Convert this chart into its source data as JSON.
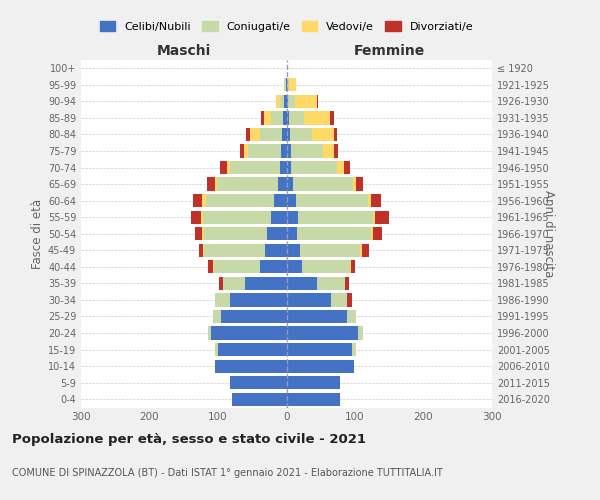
{
  "age_groups": [
    "0-4",
    "5-9",
    "10-14",
    "15-19",
    "20-24",
    "25-29",
    "30-34",
    "35-39",
    "40-44",
    "45-49",
    "50-54",
    "55-59",
    "60-64",
    "65-69",
    "70-74",
    "75-79",
    "80-84",
    "85-89",
    "90-94",
    "95-99",
    "100+"
  ],
  "birth_years": [
    "2016-2020",
    "2011-2015",
    "2006-2010",
    "2001-2005",
    "1996-2000",
    "1991-1995",
    "1986-1990",
    "1981-1985",
    "1976-1980",
    "1971-1975",
    "1966-1970",
    "1961-1965",
    "1956-1960",
    "1951-1955",
    "1946-1950",
    "1941-1945",
    "1936-1940",
    "1931-1935",
    "1926-1930",
    "1921-1925",
    "≤ 1920"
  ],
  "maschi": {
    "celibi": [
      80,
      82,
      105,
      100,
      110,
      95,
      82,
      60,
      38,
      32,
      28,
      22,
      18,
      12,
      10,
      8,
      7,
      5,
      3,
      1,
      0
    ],
    "coniugati": [
      0,
      0,
      0,
      5,
      5,
      12,
      22,
      32,
      68,
      88,
      92,
      100,
      100,
      90,
      72,
      48,
      32,
      18,
      6,
      2,
      0
    ],
    "vedovi": [
      0,
      0,
      0,
      0,
      0,
      0,
      0,
      0,
      2,
      2,
      3,
      3,
      5,
      2,
      5,
      6,
      14,
      10,
      6,
      1,
      0
    ],
    "divorziati": [
      0,
      0,
      0,
      0,
      0,
      0,
      0,
      6,
      6,
      6,
      10,
      14,
      14,
      12,
      10,
      6,
      6,
      4,
      0,
      0,
      0
    ]
  },
  "femmine": {
    "celibi": [
      78,
      78,
      98,
      95,
      105,
      88,
      65,
      45,
      22,
      20,
      16,
      17,
      14,
      9,
      6,
      6,
      5,
      4,
      2,
      1,
      0
    ],
    "coniugati": [
      0,
      0,
      0,
      6,
      6,
      14,
      24,
      40,
      70,
      88,
      108,
      110,
      105,
      88,
      68,
      48,
      32,
      22,
      10,
      3,
      0
    ],
    "vedovi": [
      0,
      0,
      0,
      0,
      0,
      0,
      0,
      0,
      2,
      2,
      2,
      2,
      5,
      5,
      10,
      16,
      32,
      38,
      32,
      10,
      1
    ],
    "divorziati": [
      0,
      0,
      0,
      0,
      0,
      0,
      6,
      6,
      6,
      10,
      14,
      20,
      14,
      10,
      8,
      5,
      5,
      5,
      2,
      0,
      0
    ]
  },
  "colors": {
    "celibi": "#4472c4",
    "coniugati": "#c8d9a8",
    "vedovi": "#ffd966",
    "divorziati": "#c0312b"
  },
  "legend_labels": [
    "Celibi/Nubili",
    "Coniugati/e",
    "Vedovi/e",
    "Divorziati/e"
  ],
  "title": "Popolazione per età, sesso e stato civile - 2021",
  "subtitle": "COMUNE DI SPINAZZOLA (BT) - Dati ISTAT 1° gennaio 2021 - Elaborazione TUTTITALIA.IT",
  "xlabel_left": "Maschi",
  "xlabel_right": "Femmine",
  "ylabel_left": "Fasce di età",
  "ylabel_right": "Anni di nascita",
  "xlim": 300,
  "bg_color": "#f0f0f0",
  "plot_bg_color": "#ffffff",
  "grid_color": "#cccccc"
}
